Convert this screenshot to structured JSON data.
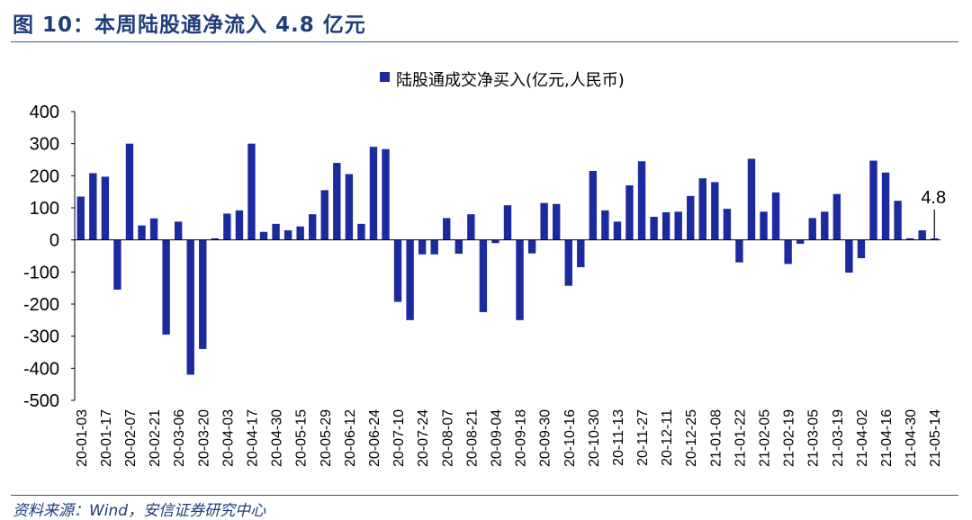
{
  "header": {
    "title": "图 10：本周陆股通净流入 4.8 亿元"
  },
  "footer": {
    "source": "资料来源：Wind，安信证券研究中心"
  },
  "colors": {
    "bar": "#1c2aa0",
    "rule": "#2b5aa8",
    "title": "#1f3d7a"
  },
  "chart_data": {
    "type": "bar",
    "title": "",
    "xlabel": "",
    "ylabel": "",
    "legend": {
      "label": "陆股通成交净买入(亿元,人民币)",
      "position": "top-center"
    },
    "ylim": [
      -500,
      400
    ],
    "yticks": [
      400,
      300,
      200,
      100,
      0,
      -100,
      -200,
      -300,
      -400,
      -500
    ],
    "grid": false,
    "xtick_labels": [
      "20-01-03",
      "20-01-17",
      "20-02-07",
      "20-02-21",
      "20-03-06",
      "20-03-20",
      "20-04-03",
      "20-04-17",
      "20-04-30",
      "20-05-15",
      "20-05-29",
      "20-06-12",
      "20-06-24",
      "20-07-10",
      "20-07-24",
      "20-08-07",
      "20-08-21",
      "20-09-04",
      "20-09-18",
      "20-09-30",
      "20-10-16",
      "20-10-30",
      "20-11-13",
      "20-11-27",
      "20-12-11",
      "20-12-25",
      "21-01-08",
      "21-01-22",
      "21-02-05",
      "21-02-19",
      "21-03-05",
      "21-03-19",
      "21-04-02",
      "21-04-16",
      "21-04-30",
      "21-05-14"
    ],
    "values": [
      135,
      208,
      197,
      -155,
      300,
      45,
      67,
      -295,
      57,
      -420,
      -340,
      5,
      82,
      92,
      300,
      25,
      50,
      30,
      42,
      80,
      155,
      240,
      205,
      50,
      290,
      283,
      -193,
      -250,
      -45,
      -45,
      68,
      -43,
      80,
      -225,
      -10,
      108,
      -250,
      -42,
      115,
      112,
      -143,
      -85,
      215,
      92,
      57,
      170,
      245,
      72,
      86,
      88,
      137,
      192,
      180,
      97,
      -70,
      253,
      88,
      148,
      -75,
      -12,
      68,
      88,
      143,
      -102,
      -57,
      247,
      210,
      122,
      5,
      30,
      4.8
    ],
    "annotation": {
      "text": "4.8",
      "index": 70
    }
  }
}
